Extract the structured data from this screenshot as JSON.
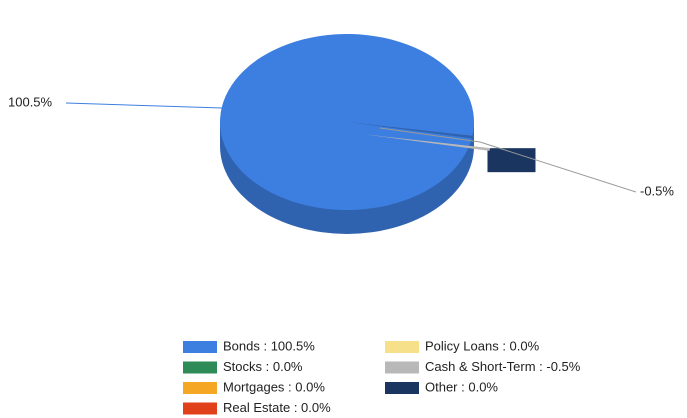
{
  "chart_data": {
    "type": "pie",
    "categories": [
      "Bonds",
      "Stocks",
      "Mortgages",
      "Real Estate",
      "Policy Loans",
      "Cash & Short-Term",
      "Other"
    ],
    "values": [
      100.5,
      0.0,
      0.0,
      0.0,
      0.0,
      -0.5,
      0.0
    ],
    "value_labels": [
      "100.5%",
      null,
      null,
      null,
      null,
      "-0.5%",
      null
    ],
    "legend_labels": [
      "Bonds : 100.5%",
      "Stocks : 0.0%",
      "Mortgages : 0.0%",
      "Real Estate : 0.0%",
      "Policy Loans : 0.0%",
      "Cash & Short-Term : -0.5%",
      "Other : 0.0%"
    ],
    "colors": [
      "#3d7fe0",
      "#2e8b57",
      "#f5a623",
      "#e0401a",
      "#f7e08a",
      "#b8b8b8",
      "#1a3560"
    ]
  }
}
